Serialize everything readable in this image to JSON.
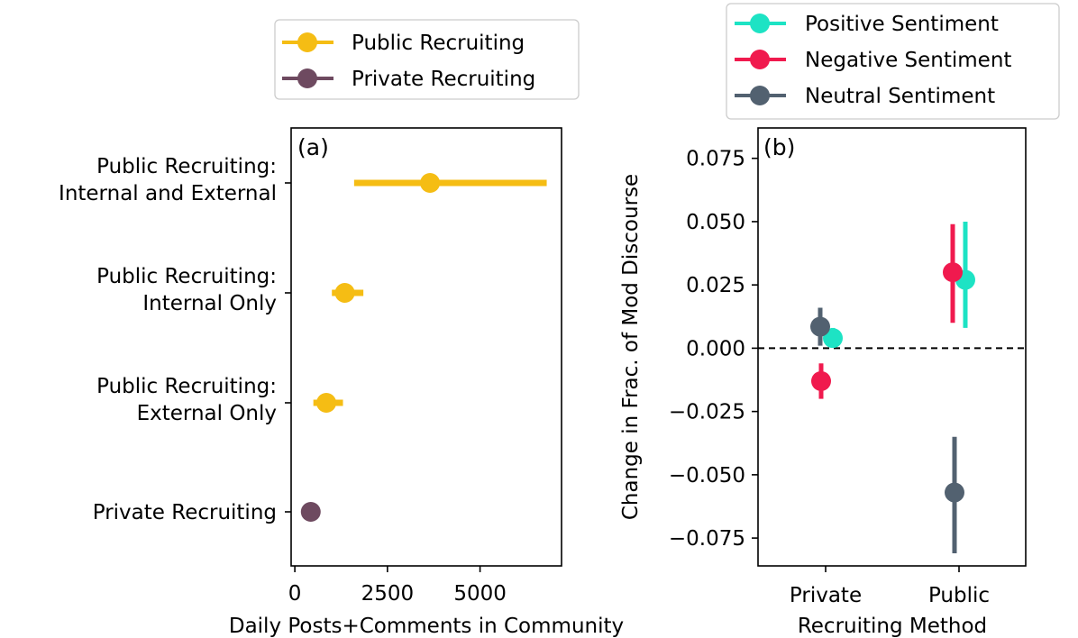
{
  "chart_data": [
    {
      "id": "a",
      "type": "scatter",
      "orientation": "horizontal",
      "panel_label": "(a)",
      "xlabel": "Daily Posts+Comments in Community",
      "ylabel": "",
      "xlim": [
        -100,
        7200
      ],
      "xticks": [
        0,
        2500,
        5000
      ],
      "categories": [
        "Public Recruiting:\nInternal and External",
        "Public Recruiting:\nInternal Only",
        "Public Recruiting:\nExternal Only",
        "Private Recruiting"
      ],
      "points": [
        {
          "category": "Public Recruiting:\nInternal and External",
          "value": 3650,
          "err_low": 1600,
          "err_high": 6800,
          "series": "Public Recruiting"
        },
        {
          "category": "Public Recruiting:\nInternal Only",
          "value": 1350,
          "err_low": 1000,
          "err_high": 1850,
          "series": "Public Recruiting"
        },
        {
          "category": "Public Recruiting:\nExternal Only",
          "value": 850,
          "err_low": 500,
          "err_high": 1300,
          "series": "Public Recruiting"
        },
        {
          "category": "Private Recruiting",
          "value": 430,
          "err_low": 430,
          "err_high": 430,
          "series": "Private Recruiting"
        }
      ],
      "legend": [
        {
          "name": "Public Recruiting",
          "color": "#f5bd14"
        },
        {
          "name": "Private Recruiting",
          "color": "#6e4a60"
        }
      ],
      "legend_position": "upper-center"
    },
    {
      "id": "b",
      "type": "scatter",
      "panel_label": "(b)",
      "xlabel": "Recruiting Method",
      "ylabel": "Change in Frac. of Mod Discourse",
      "ylim": [
        -0.086,
        0.087
      ],
      "yticks": [
        0.075,
        0.05,
        0.025,
        0.0,
        -0.025,
        -0.05,
        -0.075
      ],
      "ytick_labels": [
        "0.075",
        "0.050",
        "0.025",
        "0.000",
        "−0.025",
        "−0.050",
        "−0.075"
      ],
      "categories": [
        "Private",
        "Public"
      ],
      "reference_line": 0.0,
      "series": [
        {
          "name": "Positive Sentiment",
          "color": "#1de3c4",
          "points": [
            {
              "category": "Private",
              "value": 0.004,
              "err_low": 0.001,
              "err_high": 0.008
            },
            {
              "category": "Public",
              "value": 0.027,
              "err_low": 0.008,
              "err_high": 0.05
            }
          ]
        },
        {
          "name": "Negative Sentiment",
          "color": "#f01a4e",
          "points": [
            {
              "category": "Private",
              "value": -0.013,
              "err_low": -0.02,
              "err_high": -0.006
            },
            {
              "category": "Public",
              "value": 0.03,
              "err_low": 0.01,
              "err_high": 0.049
            }
          ]
        },
        {
          "name": "Neutral Sentiment",
          "color": "#526170",
          "points": [
            {
              "category": "Private",
              "value": 0.0085,
              "err_low": 0.001,
              "err_high": 0.016
            },
            {
              "category": "Public",
              "value": -0.057,
              "err_low": -0.081,
              "err_high": -0.035
            }
          ]
        }
      ],
      "legend_position": "top-right"
    }
  ]
}
